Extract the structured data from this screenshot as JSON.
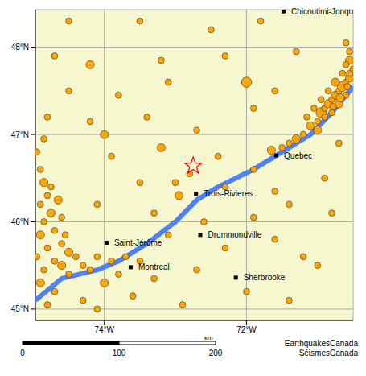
{
  "chart_data": {
    "type": "scatter",
    "xlim": [
      -74.97,
      -70.5
    ],
    "ylim": [
      44.87,
      48.43
    ],
    "xticks": [
      {
        "value": -74,
        "label": "74°W"
      },
      {
        "value": -72,
        "label": "72°W"
      }
    ],
    "yticks": [
      {
        "value": 45,
        "label": "45°N"
      },
      {
        "value": 46,
        "label": "46°N"
      },
      {
        "value": 47,
        "label": "47°N"
      },
      {
        "value": 48,
        "label": "48°N"
      }
    ],
    "grid": true,
    "background": "#f7f7cf",
    "earthquakes": {
      "color": "#ffa500",
      "marker": "circle",
      "points": [
        [
          -71.5,
          46.85,
          2
        ],
        [
          -71.3,
          46.95,
          3
        ],
        [
          -71.2,
          47.0,
          2
        ],
        [
          -71.1,
          47.1,
          3
        ],
        [
          -71.0,
          47.15,
          2
        ],
        [
          -70.95,
          47.25,
          4
        ],
        [
          -70.9,
          47.3,
          2
        ],
        [
          -70.85,
          47.35,
          3
        ],
        [
          -70.8,
          47.4,
          2
        ],
        [
          -70.75,
          47.45,
          3
        ],
        [
          -70.7,
          47.5,
          2
        ],
        [
          -70.65,
          47.55,
          4
        ],
        [
          -70.6,
          47.6,
          2
        ],
        [
          -70.55,
          47.65,
          3
        ],
        [
          -70.55,
          47.7,
          2
        ],
        [
          -70.6,
          47.45,
          2
        ],
        [
          -70.7,
          47.35,
          3
        ],
        [
          -70.8,
          47.25,
          2
        ],
        [
          -70.9,
          47.2,
          2
        ],
        [
          -71.0,
          47.05,
          3
        ],
        [
          -70.5,
          47.75,
          2
        ],
        [
          -70.55,
          47.85,
          3
        ],
        [
          -70.6,
          47.8,
          2
        ],
        [
          -70.65,
          47.7,
          2
        ],
        [
          -70.75,
          47.6,
          3
        ],
        [
          -70.85,
          47.5,
          2
        ],
        [
          -70.95,
          47.4,
          2
        ],
        [
          -71.05,
          47.3,
          2
        ],
        [
          -71.15,
          47.2,
          2
        ],
        [
          -70.55,
          47.95,
          2
        ],
        [
          -70.6,
          48.05,
          2
        ],
        [
          -70.58,
          47.55,
          2
        ],
        [
          -70.68,
          47.42,
          3
        ],
        [
          -70.78,
          47.32,
          2
        ],
        [
          -71.4,
          46.9,
          2
        ],
        [
          -71.65,
          46.82,
          3
        ],
        [
          -74.9,
          46.6,
          2
        ],
        [
          -74.85,
          46.45,
          3
        ],
        [
          -74.8,
          46.3,
          2
        ],
        [
          -74.9,
          46.2,
          2
        ],
        [
          -74.75,
          46.1,
          3
        ],
        [
          -74.85,
          46.0,
          2
        ],
        [
          -74.7,
          45.9,
          2
        ],
        [
          -74.9,
          45.85,
          3
        ],
        [
          -74.6,
          45.75,
          2
        ],
        [
          -74.8,
          45.7,
          2
        ],
        [
          -74.5,
          45.65,
          3
        ],
        [
          -74.95,
          45.6,
          2
        ],
        [
          -74.7,
          45.55,
          2
        ],
        [
          -74.4,
          45.6,
          2
        ],
        [
          -74.6,
          45.5,
          3
        ],
        [
          -74.85,
          45.45,
          2
        ],
        [
          -74.3,
          45.5,
          2
        ],
        [
          -74.5,
          45.4,
          2
        ],
        [
          -74.9,
          45.3,
          3
        ],
        [
          -74.7,
          45.2,
          2
        ],
        [
          -74.8,
          45.05,
          2
        ],
        [
          -74.6,
          46.05,
          2
        ],
        [
          -74.75,
          46.4,
          2
        ],
        [
          -74.95,
          46.8,
          2
        ],
        [
          -74.85,
          46.95,
          2
        ],
        [
          -74.55,
          45.85,
          2
        ],
        [
          -74.65,
          46.25,
          3
        ],
        [
          -74.1,
          45.6,
          2
        ],
        [
          -73.9,
          45.55,
          2
        ],
        [
          -73.7,
          45.6,
          2
        ],
        [
          -73.8,
          45.4,
          2
        ],
        [
          -74.2,
          45.45,
          2
        ],
        [
          -73.5,
          45.55,
          2
        ],
        [
          -74.0,
          45.3,
          3
        ],
        [
          -74.3,
          45.1,
          2
        ],
        [
          -73.6,
          45.15,
          2
        ],
        [
          -74.1,
          45.0,
          2
        ],
        [
          -74.5,
          48.3,
          2
        ],
        [
          -73.5,
          48.3,
          2
        ],
        [
          -72.5,
          48.2,
          2
        ],
        [
          -71.8,
          48.3,
          2
        ],
        [
          -74.7,
          47.9,
          2
        ],
        [
          -74.2,
          47.8,
          3
        ],
        [
          -73.2,
          47.85,
          2
        ],
        [
          -72.3,
          47.9,
          2
        ],
        [
          -71.3,
          47.95,
          2
        ],
        [
          -74.5,
          47.5,
          2
        ],
        [
          -73.8,
          47.45,
          2
        ],
        [
          -73.1,
          47.6,
          2
        ],
        [
          -72.0,
          47.6,
          4
        ],
        [
          -71.6,
          47.5,
          2
        ],
        [
          -74.8,
          47.2,
          2
        ],
        [
          -74.2,
          47.15,
          2
        ],
        [
          -73.4,
          47.2,
          2
        ],
        [
          -72.7,
          47.05,
          2
        ],
        [
          -71.9,
          47.3,
          2
        ],
        [
          -73.2,
          46.85,
          3
        ],
        [
          -73.9,
          46.75,
          2
        ],
        [
          -72.4,
          46.75,
          2
        ],
        [
          -71.9,
          46.6,
          2
        ],
        [
          -73.5,
          46.45,
          2
        ],
        [
          -72.95,
          46.3,
          3
        ],
        [
          -72.3,
          46.4,
          2
        ],
        [
          -71.6,
          46.35,
          2
        ],
        [
          -74.1,
          46.2,
          2
        ],
        [
          -73.3,
          46.1,
          2
        ],
        [
          -72.6,
          46.0,
          2
        ],
        [
          -71.9,
          46.05,
          2
        ],
        [
          -71.4,
          46.2,
          2
        ],
        [
          -73.1,
          45.85,
          2
        ],
        [
          -72.3,
          45.7,
          2
        ],
        [
          -71.6,
          45.8,
          2
        ],
        [
          -71.2,
          45.6,
          2
        ],
        [
          -73.3,
          45.35,
          2
        ],
        [
          -72.7,
          45.45,
          2
        ],
        [
          -72.0,
          45.2,
          2
        ],
        [
          -71.4,
          45.1,
          2
        ],
        [
          -72.9,
          45.05,
          2
        ],
        [
          -70.9,
          46.5,
          2
        ],
        [
          -70.8,
          46.1,
          2
        ],
        [
          -71.0,
          45.5,
          2
        ],
        [
          -70.7,
          46.9,
          2
        ],
        [
          -74.0,
          47.0,
          3
        ],
        [
          -72.8,
          46.55,
          2
        ],
        [
          -73.0,
          46.45,
          2
        ]
      ]
    },
    "epicenter": {
      "color": "#ff0000",
      "marker": "star",
      "x": -72.75,
      "y": 46.64
    },
    "cities": [
      {
        "name": "Chicoutimi-Jonqu",
        "x": -71.48,
        "y": 48.41
      },
      {
        "name": "Quebec",
        "x": -71.58,
        "y": 46.76
      },
      {
        "name": "Trois-Rivieres",
        "x": -72.71,
        "y": 46.32
      },
      {
        "name": "Drummondville",
        "x": -72.65,
        "y": 45.85
      },
      {
        "name": "Saint-Jérôme",
        "x": -73.97,
        "y": 45.76
      },
      {
        "name": "Montreal",
        "x": -73.63,
        "y": 45.48
      },
      {
        "name": "Sherbrooke",
        "x": -72.15,
        "y": 45.36
      }
    ],
    "river": {
      "color": "#4d7fff",
      "points": [
        [
          -74.97,
          45.1
        ],
        [
          -74.6,
          45.35
        ],
        [
          -74.1,
          45.45
        ],
        [
          -73.8,
          45.55
        ],
        [
          -73.4,
          45.75
        ],
        [
          -73.0,
          46.0
        ],
        [
          -72.7,
          46.25
        ],
        [
          -72.4,
          46.4
        ],
        [
          -71.9,
          46.6
        ],
        [
          -71.5,
          46.8
        ],
        [
          -71.1,
          47.0
        ],
        [
          -70.8,
          47.25
        ],
        [
          -70.5,
          47.55
        ]
      ]
    },
    "scale_bar": {
      "ticks": [
        0,
        100,
        200
      ],
      "unit": "km"
    },
    "credit": [
      "EarthquakesCanada",
      "SéismesCanada"
    ]
  }
}
